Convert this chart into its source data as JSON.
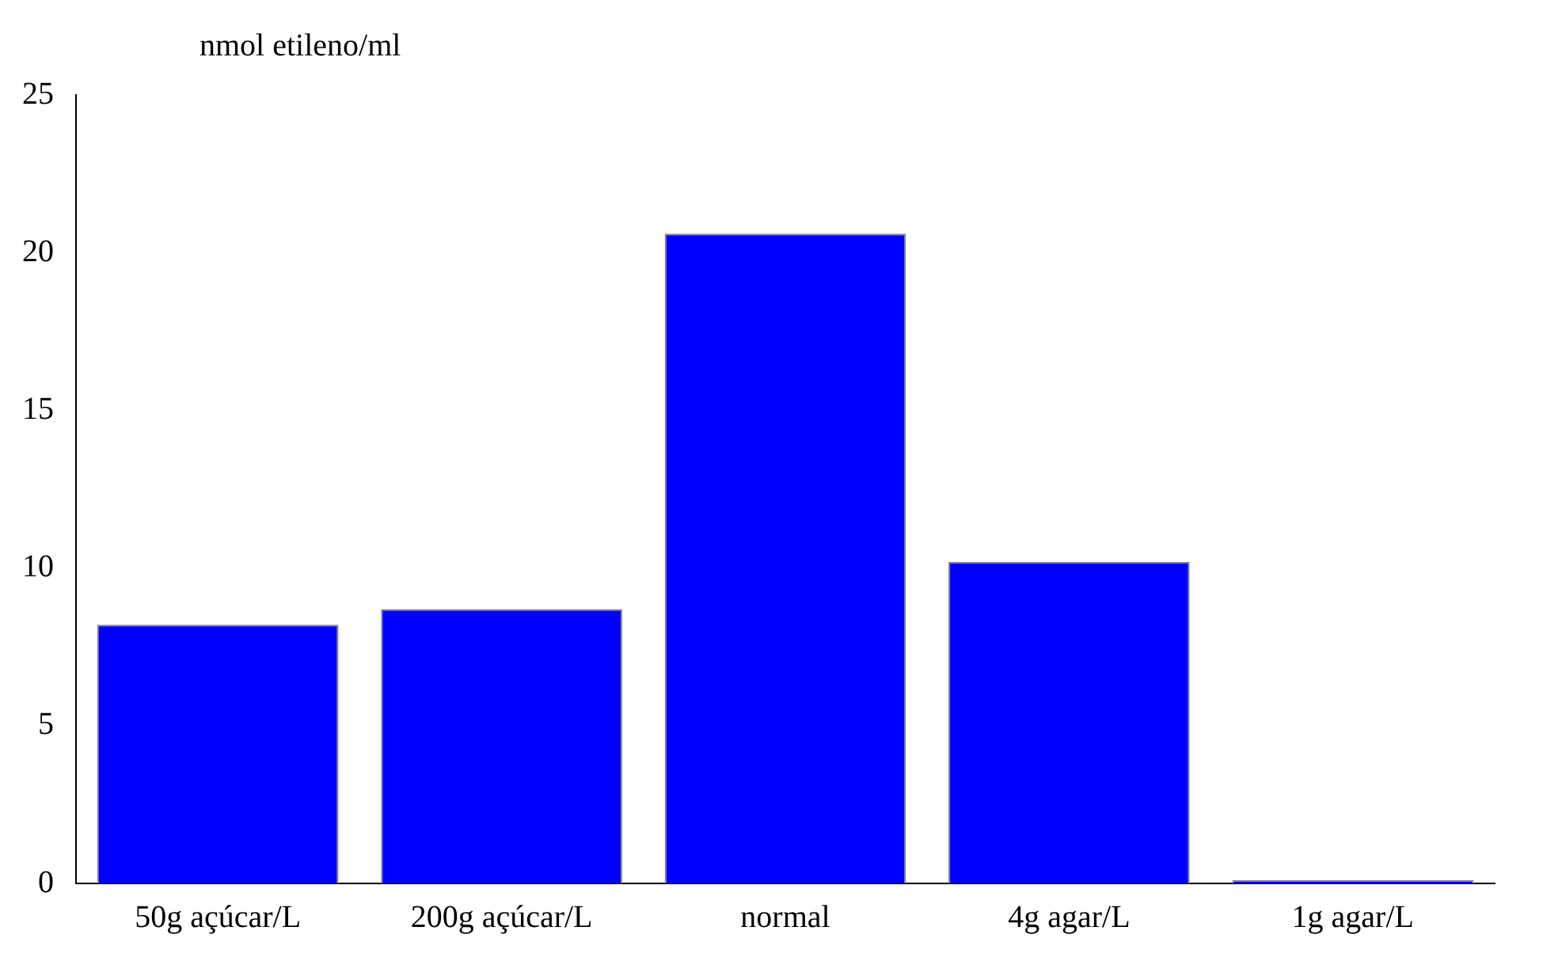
{
  "chart_data": {
    "type": "bar",
    "ylabel": "nmol etileno/ml",
    "categories": [
      "50g açúcar/L",
      "200g açúcar/L",
      "normal",
      "4g agar/L",
      "1g agar/L"
    ],
    "values": [
      8.2,
      8.7,
      20.6,
      10.2,
      0
    ],
    "color": "#0000ff",
    "ylim": [
      0,
      25
    ],
    "yticks": [
      0,
      5,
      10,
      15,
      20,
      25
    ],
    "grid": false,
    "legend": false
  }
}
